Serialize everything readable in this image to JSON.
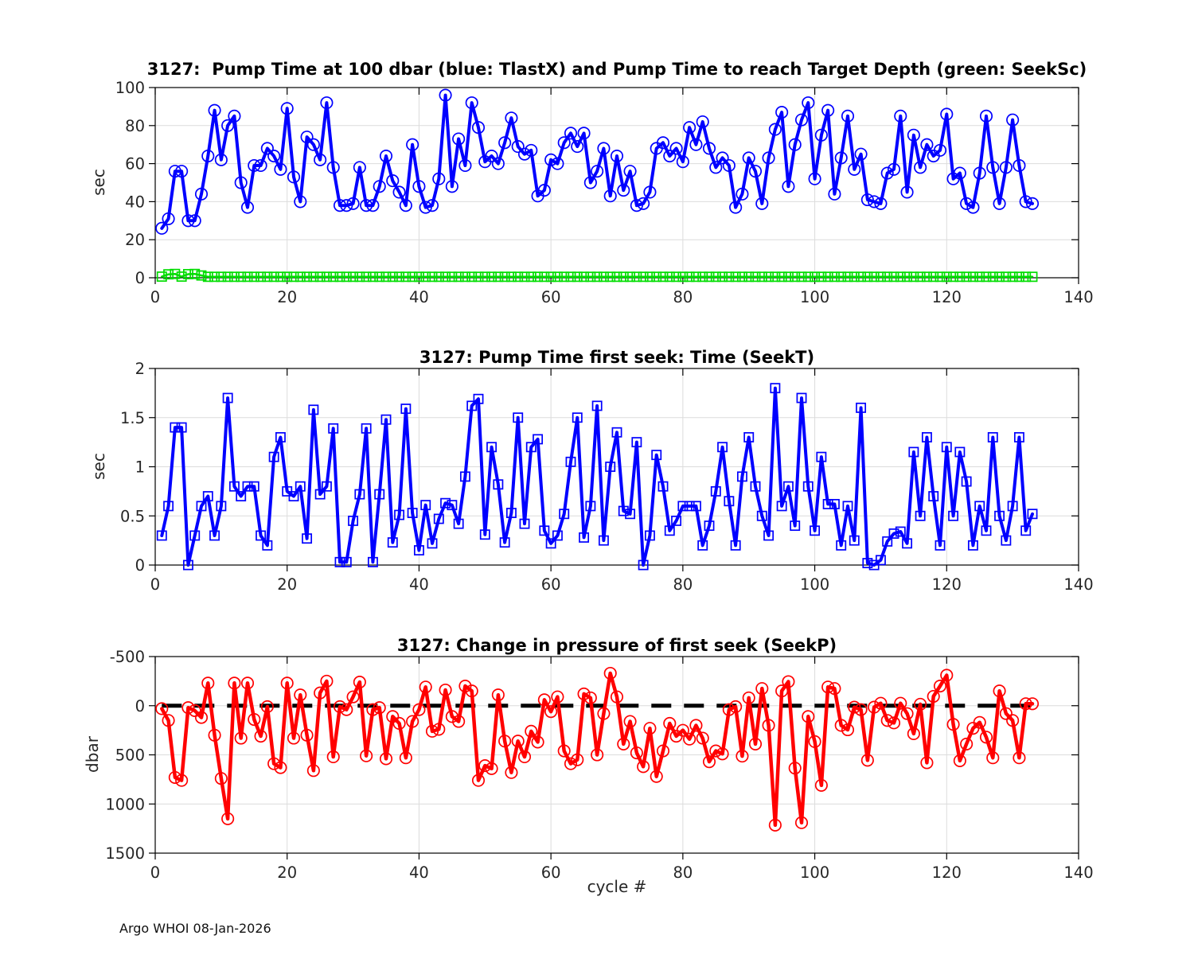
{
  "figure": {
    "xlabel": "cycle #",
    "footer": "Argo WHOI 08-Jan-2026",
    "background": "#ffffff",
    "grid_color": "#dcdcdc",
    "axis_color": "#000000"
  },
  "chart_data": [
    {
      "type": "line",
      "title": "3127:  Pump Time at 100 dbar (blue: TlastX) and Pump Time to reach Target Depth (green: SeekSc)",
      "ylabel": "sec",
      "xlim": [
        0,
        140
      ],
      "ylim": [
        0,
        100
      ],
      "xticks": [
        0,
        20,
        40,
        60,
        80,
        100,
        120,
        140
      ],
      "yticks": [
        0,
        20,
        40,
        60,
        80,
        100
      ],
      "grid": true,
      "legend_position": "none (encoded in title)",
      "x_start": 1,
      "x_step": 1,
      "n_points": 133,
      "series": [
        {
          "name": "TlastX",
          "color": "#0000ff",
          "marker": "circle",
          "values": [
            26,
            31,
            56,
            56,
            30,
            30,
            44,
            64,
            88,
            62,
            80,
            85,
            50,
            37,
            59,
            59,
            68,
            64,
            57,
            89,
            53,
            40,
            74,
            70,
            62,
            92,
            58,
            38,
            38,
            39,
            58,
            38,
            38,
            48,
            64,
            51,
            45,
            38,
            70,
            48,
            37,
            38,
            52,
            96,
            48,
            73,
            59,
            92,
            79,
            61,
            64,
            60,
            71,
            84,
            69,
            65,
            67,
            43,
            46,
            62,
            60,
            71,
            76,
            69,
            76,
            50,
            56,
            68,
            43,
            64,
            46,
            56,
            38,
            39,
            45,
            68,
            71,
            64,
            68,
            61,
            79,
            70,
            82,
            68,
            58,
            63,
            59,
            37,
            44,
            63,
            56,
            39,
            63,
            78,
            87,
            48,
            70,
            83,
            92,
            52,
            75,
            88,
            44,
            63,
            85,
            57,
            65,
            41,
            40,
            39,
            55,
            57,
            85,
            45,
            75,
            58,
            70,
            64,
            67,
            86,
            52,
            55,
            39,
            37,
            55,
            85,
            58,
            39,
            58,
            83,
            59,
            40,
            39
          ]
        },
        {
          "name": "SeekSc",
          "color": "#00dd00",
          "marker": "square",
          "values": [
            0.6,
            1.8,
            2,
            0.6,
            1.9,
            2,
            1.2,
            0.5,
            0.5,
            0.5,
            0.5,
            0.5,
            0.5,
            0.5,
            0.5,
            0.5,
            0.5,
            0.5,
            0.5,
            0.5,
            0.5,
            0.5,
            0.5,
            0.5,
            0.5,
            0.5,
            0.5,
            0.5,
            0.5,
            0.5,
            0.5,
            0.5,
            0.5,
            0.5,
            0.5,
            0.5,
            0.5,
            0.5,
            0.5,
            0.5,
            0.5,
            0.5,
            0.5,
            0.5,
            0.5,
            0.5,
            0.5,
            0.5,
            0.5,
            0.5,
            0.5,
            0.5,
            0.5,
            0.5,
            0.5,
            0.5,
            0.5,
            0.5,
            0.5,
            0.5,
            0.5,
            0.5,
            0.5,
            0.5,
            0.5,
            0.5,
            0.5,
            0.5,
            0.5,
            0.5,
            0.5,
            0.5,
            0.5,
            0.5,
            0.5,
            0.5,
            0.5,
            0.5,
            0.5,
            0.5,
            0.5,
            0.5,
            0.5,
            0.5,
            0.5,
            0.5,
            0.5,
            0.5,
            0.5,
            0.5,
            0.5,
            0.5,
            0.5,
            0.5,
            0.5,
            0.5,
            0.5,
            0.5,
            0.5,
            0.5,
            0.5,
            0.5,
            0.5,
            0.5,
            0.5,
            0.5,
            0.5,
            0.5,
            0.5,
            0.5,
            0.5,
            0.5,
            0.5,
            0.5,
            0.5,
            0.5,
            0.5,
            0.5,
            0.5,
            0.5,
            0.5,
            0.5,
            0.5,
            0.5,
            0.5,
            0.5,
            0.5,
            0.5,
            0.5,
            0.5,
            0.5,
            0.5,
            0.5
          ]
        }
      ]
    },
    {
      "type": "line",
      "title": "3127: Pump Time first seek: Time (SeekT)",
      "ylabel": "sec",
      "xlim": [
        0,
        140
      ],
      "ylim": [
        0,
        2
      ],
      "xticks": [
        0,
        20,
        40,
        60,
        80,
        100,
        120,
        140
      ],
      "yticks": [
        0,
        0.5,
        1,
        1.5,
        2
      ],
      "grid": true,
      "x_start": 1,
      "x_step": 1,
      "n_points": 133,
      "series": [
        {
          "name": "SeekT",
          "color": "#0000ff",
          "marker": "square",
          "values": [
            0.3,
            0.6,
            1.4,
            1.4,
            0.0,
            0.3,
            0.6,
            0.7,
            0.3,
            0.6,
            1.7,
            0.8,
            0.7,
            0.8,
            0.8,
            0.3,
            0.2,
            1.1,
            1.3,
            0.75,
            0.7,
            0.8,
            0.27,
            1.58,
            0.72,
            0.8,
            1.39,
            0.03,
            0.03,
            0.45,
            0.72,
            1.39,
            0.03,
            0.72,
            1.48,
            0.23,
            0.51,
            1.59,
            0.53,
            0.15,
            0.61,
            0.22,
            0.47,
            0.63,
            0.61,
            0.42,
            0.9,
            1.62,
            1.69,
            0.31,
            1.2,
            0.82,
            0.23,
            0.53,
            1.5,
            0.42,
            1.2,
            1.28,
            0.35,
            0.22,
            0.3,
            0.52,
            1.05,
            1.5,
            0.28,
            0.6,
            1.62,
            0.25,
            1.0,
            1.35,
            0.55,
            0.52,
            1.25,
            0.0,
            0.3,
            1.12,
            0.8,
            0.35,
            0.45,
            0.6,
            0.6,
            0.6,
            0.2,
            0.4,
            0.75,
            1.2,
            0.65,
            0.2,
            0.9,
            1.3,
            0.8,
            0.5,
            0.3,
            1.8,
            0.6,
            0.8,
            0.4,
            1.7,
            0.8,
            0.35,
            1.1,
            0.62,
            0.62,
            0.2,
            0.6,
            0.25,
            1.6,
            0.02,
            0.0,
            0.05,
            0.24,
            0.32,
            0.34,
            0.22,
            1.15,
            0.5,
            1.3,
            0.7,
            0.2,
            1.2,
            0.5,
            1.15,
            0.85,
            0.2,
            0.6,
            0.35,
            1.3,
            0.5,
            0.25,
            0.6,
            1.3,
            0.35,
            0.52
          ]
        }
      ]
    },
    {
      "type": "line",
      "title": "3127: Change in pressure of first seek (SeekP)",
      "ylabel": "dbar",
      "xlabel": "cycle #",
      "xlim": [
        0,
        140
      ],
      "ylim": [
        -500,
        1500
      ],
      "y_reversed": true,
      "xticks": [
        0,
        20,
        40,
        60,
        80,
        100,
        120,
        140
      ],
      "yticks": [
        -500,
        0,
        500,
        1000,
        1500
      ],
      "grid": true,
      "x_start": 1,
      "x_step": 1,
      "n_points": 133,
      "zero_line": {
        "value": 0,
        "style": "dashed",
        "color": "#000000"
      },
      "series": [
        {
          "name": "SeekP",
          "color": "#ff0000",
          "marker": "circle",
          "values": [
            30,
            150,
            730,
            760,
            20,
            50,
            120,
            -230,
            300,
            740,
            1150,
            -230,
            330,
            -230,
            140,
            310,
            10,
            590,
            630,
            -230,
            330,
            -110,
            300,
            660,
            -130,
            -250,
            520,
            10,
            40,
            -90,
            -240,
            510,
            40,
            20,
            540,
            110,
            180,
            530,
            160,
            40,
            -190,
            260,
            240,
            -160,
            110,
            160,
            -200,
            -150,
            760,
            610,
            640,
            -110,
            360,
            680,
            360,
            520,
            260,
            370,
            -60,
            60,
            -90,
            460,
            590,
            550,
            -120,
            -80,
            500,
            80,
            -330,
            -90,
            390,
            160,
            480,
            620,
            230,
            720,
            460,
            180,
            310,
            250,
            340,
            200,
            330,
            570,
            460,
            490,
            40,
            10,
            513,
            -80,
            390,
            -175,
            200,
            1215,
            -150,
            -245,
            635,
            1190,
            110,
            365,
            810,
            -190,
            -175,
            200,
            245,
            15,
            40,
            555,
            15,
            -25,
            150,
            175,
            -25,
            80,
            285,
            -15,
            580,
            -95,
            -200,
            -310,
            190,
            560,
            390,
            230,
            170,
            320,
            530,
            -150,
            80,
            150,
            530,
            -20,
            -20
          ]
        }
      ]
    }
  ]
}
